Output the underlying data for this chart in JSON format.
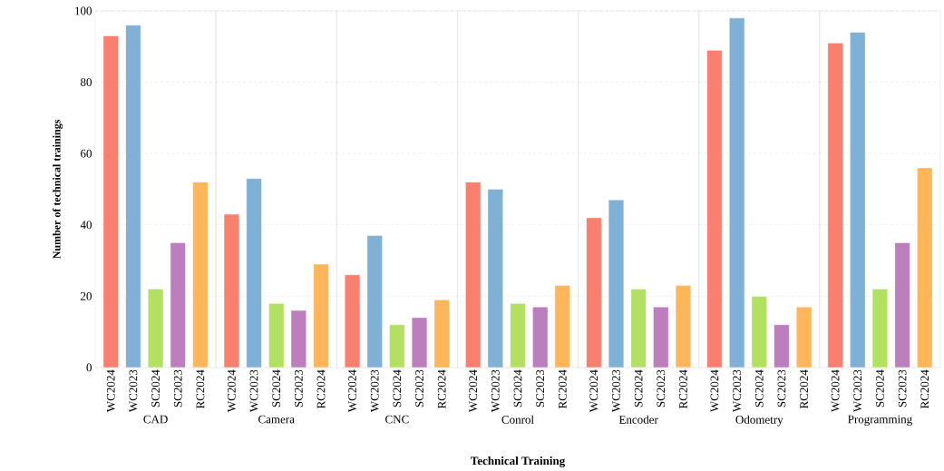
{
  "chart_data": [
    {
      "type": "bar",
      "xlabel": "CAD",
      "ylabel": "Number of technical trainings",
      "categories": [
        "WC2024",
        "WC2023",
        "SC2024",
        "SC2023",
        "RC2024"
      ],
      "values": [
        93,
        96,
        22,
        35,
        52
      ],
      "colors": [
        "#fa7f6f",
        "#7fb0d5",
        "#b2e061",
        "#bd7ebe",
        "#ffb55a"
      ],
      "ylim": [
        0,
        100
      ],
      "yticks": [
        0,
        20,
        40,
        60,
        80,
        100
      ],
      "grid": "y"
    },
    {
      "type": "bar",
      "xlabel": "Camera",
      "categories": [
        "WC2024",
        "WC2023",
        "SC2024",
        "SC2023",
        "RC2024"
      ],
      "values": [
        43,
        53,
        18,
        16,
        29
      ],
      "colors": [
        "#fa7f6f",
        "#7fb0d5",
        "#b2e061",
        "#bd7ebe",
        "#ffb55a"
      ],
      "ylim": [
        0,
        100
      ],
      "yticks": [
        0,
        20,
        40,
        60,
        80,
        100
      ],
      "grid": "y",
      "tick_labels": "x"
    },
    {
      "type": "bar",
      "xlabel": "CNC",
      "categories": [
        "WC2024",
        "WC2023",
        "SC2024",
        "SC2023",
        "RC2024"
      ],
      "values": [
        26,
        37,
        12,
        14,
        19
      ],
      "colors": [
        "#fa7f6f",
        "#7fb0d5",
        "#b2e061",
        "#bd7ebe",
        "#ffb55a"
      ],
      "ylim": [
        0,
        100
      ],
      "yticks": [
        0,
        20,
        40,
        60,
        80,
        100
      ],
      "grid": "y",
      "tick_labels": "x"
    },
    {
      "type": "bar",
      "xlabel": "Conrol",
      "categories": [
        "WC2024",
        "WC2023",
        "SC2024",
        "SC2023",
        "RC2024"
      ],
      "values": [
        52,
        50,
        18,
        17,
        23
      ],
      "colors": [
        "#fa7f6f",
        "#7fb0d5",
        "#b2e061",
        "#bd7ebe",
        "#ffb55a"
      ],
      "ylim": [
        0,
        100
      ],
      "yticks": [
        0,
        20,
        40,
        60,
        80,
        100
      ],
      "grid": "y",
      "tick_labels": "x",
      "annotations": [
        "Technical Training"
      ]
    },
    {
      "type": "bar",
      "xlabel": "Encoder",
      "categories": [
        "WC2024",
        "WC2023",
        "SC2024",
        "SC2023",
        "RC2024"
      ],
      "values": [
        42,
        47,
        22,
        17,
        23
      ],
      "colors": [
        "#fa7f6f",
        "#7fb0d5",
        "#b2e061",
        "#bd7ebe",
        "#ffb55a"
      ],
      "ylim": [
        0,
        100
      ],
      "yticks": [
        0,
        20,
        40,
        60,
        80,
        100
      ],
      "grid": "y",
      "tick_labels": "x"
    },
    {
      "type": "bar",
      "xlabel": "Odometry",
      "categories": [
        "WC2024",
        "WC2023",
        "SC2024",
        "SC2023",
        "RC2024"
      ],
      "values": [
        89,
        98,
        20,
        12,
        17
      ],
      "colors": [
        "#fa7f6f",
        "#7fb0d5",
        "#b2e061",
        "#bd7ebe",
        "#ffb55a"
      ],
      "ylim": [
        0,
        100
      ],
      "yticks": [
        0,
        20,
        40,
        60,
        80,
        100
      ],
      "grid": "y",
      "tick_labels": "x"
    },
    {
      "type": "bar",
      "xlabel": "Programming",
      "categories": [
        "WC2024",
        "WC2023",
        "SC2024",
        "SC2023",
        "RC2024"
      ],
      "values": [
        91,
        94,
        22,
        35,
        56
      ],
      "colors": [
        "#fa7f6f",
        "#7fb0d5",
        "#b2e061",
        "#bd7ebe",
        "#ffb55a"
      ],
      "ylim": [
        0,
        100
      ],
      "yticks": [
        0,
        20,
        40,
        60,
        80,
        100
      ],
      "grid": "y",
      "tick_labels": "x"
    }
  ]
}
